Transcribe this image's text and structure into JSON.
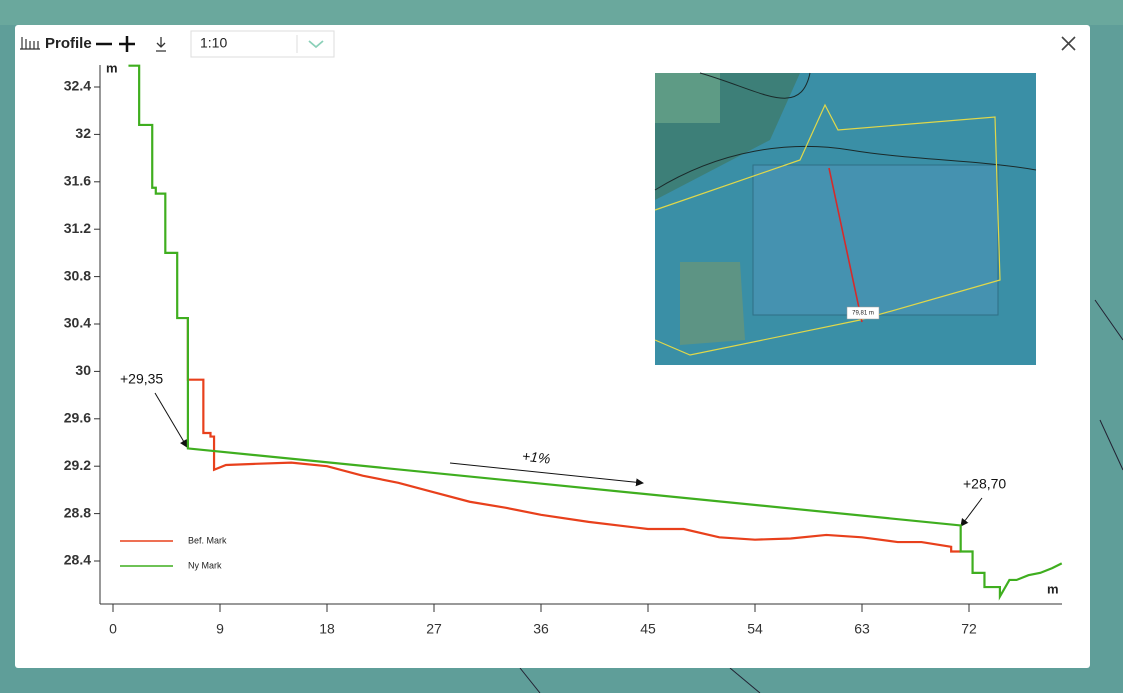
{
  "toolbar": {
    "title": "Profile",
    "scale": "1:10"
  },
  "inset": {
    "label": "79,81 m"
  },
  "chart_data": {
    "type": "line",
    "xlabel": "m",
    "ylabel": "m",
    "xlim": [
      0,
      80
    ],
    "ylim": [
      28.04,
      32.6
    ],
    "xticks": [
      0,
      9,
      18,
      27,
      36,
      45,
      54,
      63,
      72
    ],
    "yticks": [
      28.4,
      28.8,
      29.2,
      29.6,
      30,
      30.4,
      30.8,
      31.2,
      31.6,
      32,
      32.4
    ],
    "legend": "lower left",
    "annotations": [
      "+29,35",
      "+28,70",
      "+1%"
    ],
    "series": [
      {
        "name": "Bef.  Mark",
        "color": "#e8401c",
        "x": [
          6.3,
          6.3,
          7.6,
          7.6,
          8.2,
          8.2,
          8.5,
          8.5,
          9.5,
          12,
          15,
          18,
          21,
          24,
          27,
          30,
          33,
          36,
          40,
          45,
          48,
          51,
          54,
          57,
          60,
          63,
          66,
          68,
          70.5,
          70.5,
          71.3
        ],
        "values": [
          30.45,
          29.93,
          29.93,
          29.48,
          29.48,
          29.45,
          29.45,
          29.17,
          29.21,
          29.22,
          29.23,
          29.2,
          29.12,
          29.06,
          28.98,
          28.9,
          28.85,
          28.79,
          28.73,
          28.67,
          28.67,
          28.6,
          28.58,
          28.59,
          28.62,
          28.6,
          28.56,
          28.56,
          28.52,
          28.48,
          28.48
        ]
      },
      {
        "name": "Ny Mark",
        "color": "#3fae1f",
        "x": [
          1.3,
          2.2,
          2.2,
          3.3,
          3.3,
          3.6,
          3.6,
          4.4,
          4.4,
          5.4,
          5.4,
          6.3,
          6.3,
          71.3,
          71.3,
          72.3,
          72.3,
          73.3,
          73.3,
          74.6,
          74.6,
          75.4,
          76,
          77,
          78,
          79,
          79.8
        ],
        "values": [
          32.58,
          32.58,
          32.08,
          32.08,
          31.55,
          31.55,
          31.5,
          31.5,
          31.0,
          31.0,
          30.45,
          30.45,
          29.35,
          28.7,
          28.48,
          28.48,
          28.3,
          28.3,
          28.18,
          28.18,
          28.1,
          28.24,
          28.24,
          28.28,
          28.3,
          28.34,
          28.38
        ]
      }
    ]
  }
}
